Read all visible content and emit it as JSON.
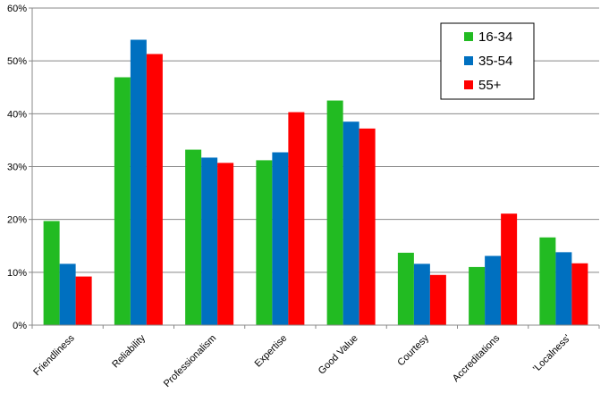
{
  "chart_data": {
    "type": "bar",
    "title": "",
    "xlabel": "",
    "ylabel": "",
    "categories": [
      "Friendliness",
      "Reliability",
      "Professionalism",
      "Expertise",
      "Good Value",
      "Courtesy",
      "Accreditations",
      "'Localness'"
    ],
    "series": [
      {
        "name": "16-34",
        "color": "#22bb22",
        "values": [
          19.7,
          46.9,
          33.2,
          31.2,
          42.5,
          13.7,
          11.0,
          16.6
        ]
      },
      {
        "name": "35-54",
        "color": "#0070c0",
        "values": [
          11.6,
          54.0,
          31.7,
          32.7,
          38.5,
          11.6,
          13.1,
          13.8
        ]
      },
      {
        "name": "55+",
        "color": "#ff0000",
        "values": [
          9.2,
          51.3,
          30.7,
          40.3,
          37.2,
          9.5,
          21.1,
          11.7
        ]
      }
    ],
    "ylim": [
      0,
      60
    ],
    "yticks": [
      "0%",
      "10%",
      "20%",
      "30%",
      "40%",
      "50%",
      "60%"
    ],
    "grid": true,
    "legend_position": "top-right"
  }
}
